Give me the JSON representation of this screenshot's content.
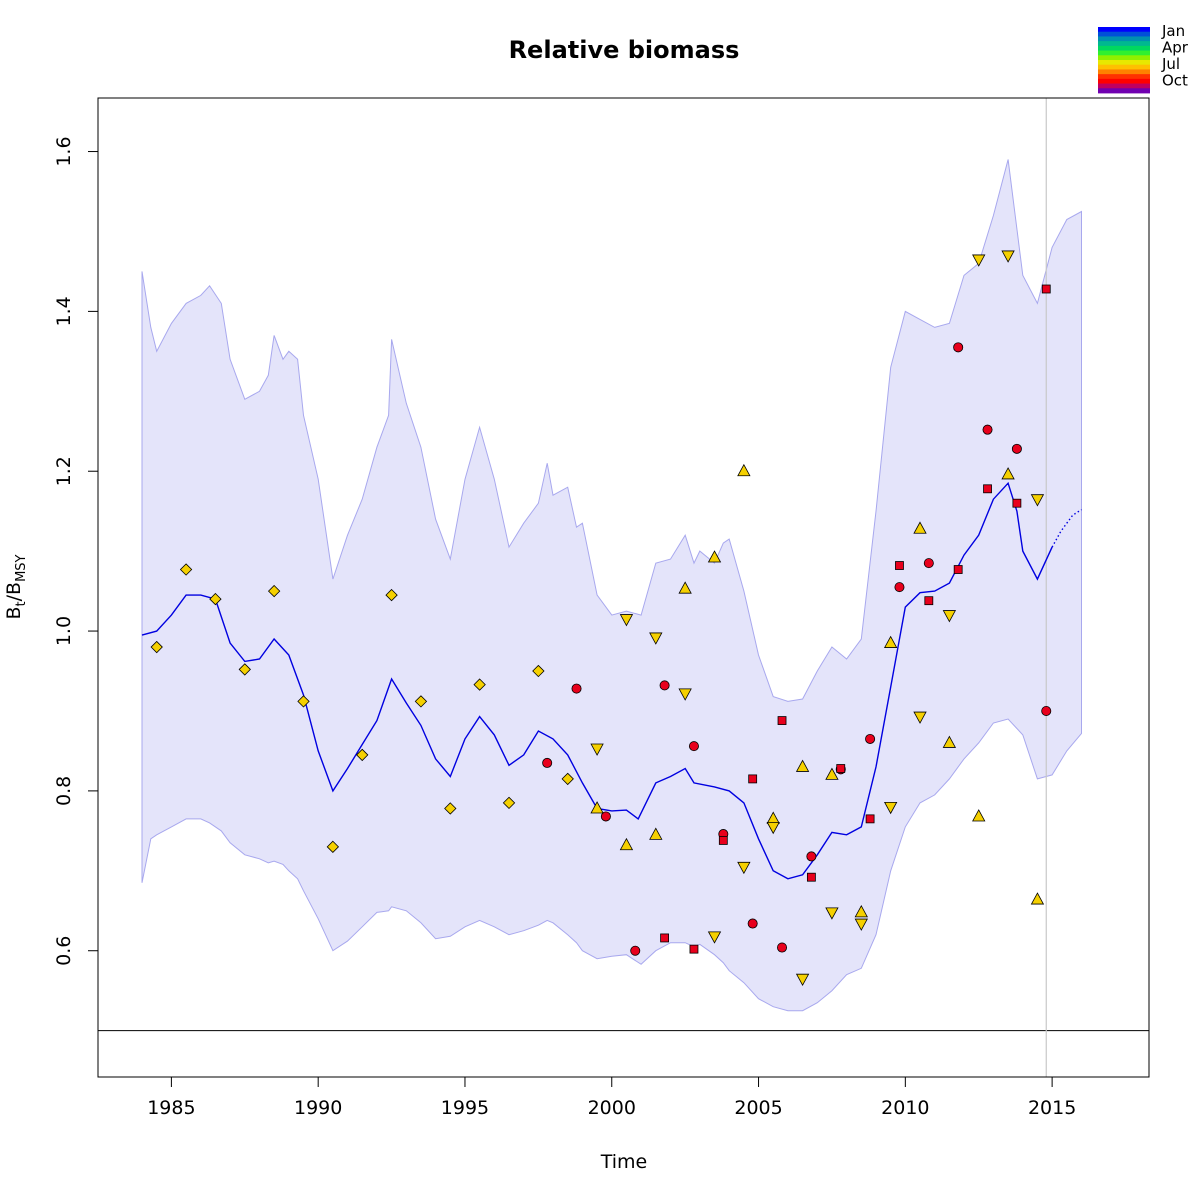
{
  "chart_data": {
    "type": "line",
    "title": "Relative biomass",
    "xlabel": "Time",
    "ylabel": {
      "base": "B",
      "sub1": "t",
      "sep": "/B",
      "sub2": "MSY"
    },
    "xlim": [
      1982.5,
      2018.3
    ],
    "ylim": [
      0.442,
      1.667
    ],
    "x_ticks": [
      1985,
      1990,
      1995,
      2000,
      2005,
      2010,
      2015
    ],
    "y_ticks": [
      0.6,
      0.8,
      1.0,
      1.2,
      1.4,
      1.6
    ],
    "y_tick_labels": [
      "0.6",
      "0.8",
      "1.0",
      "1.2",
      "1.4",
      "1.6"
    ],
    "reference_line_y": 0.5,
    "vertical_line_x": 2014.8,
    "colors": {
      "line": "#0000e0",
      "band_fill": "#e4e4fa",
      "band_stroke": "#a8a8ee",
      "frame": "#000000",
      "vline": "#c8c8c8"
    },
    "legend": {
      "position": "top-right",
      "labels": [
        "Jan",
        "Apr",
        "Jul",
        "Oct"
      ],
      "colors": [
        "#0000ff",
        "#0050d8",
        "#0090b0",
        "#00b890",
        "#00d860",
        "#30f030",
        "#90f000",
        "#e8e800",
        "#ffc000",
        "#ff8000",
        "#ff3000",
        "#ff0000",
        "#c00060",
        "#7000b0"
      ]
    },
    "series": [
      {
        "name": "biomass",
        "style": "solid",
        "points": [
          [
            1984.0,
            0.995
          ],
          [
            1984.5,
            1.0
          ],
          [
            1985.0,
            1.02
          ],
          [
            1985.5,
            1.045
          ],
          [
            1986.0,
            1.045
          ],
          [
            1986.5,
            1.04
          ],
          [
            1987.0,
            0.985
          ],
          [
            1987.5,
            0.962
          ],
          [
            1988.0,
            0.965
          ],
          [
            1988.5,
            0.99
          ],
          [
            1989.0,
            0.97
          ],
          [
            1989.5,
            0.92
          ],
          [
            1990.0,
            0.85
          ],
          [
            1990.5,
            0.8
          ],
          [
            1991.0,
            0.828
          ],
          [
            1991.5,
            0.858
          ],
          [
            1992.0,
            0.888
          ],
          [
            1992.5,
            0.94
          ],
          [
            1993.0,
            0.91
          ],
          [
            1993.5,
            0.882
          ],
          [
            1994.0,
            0.84
          ],
          [
            1994.5,
            0.818
          ],
          [
            1995.0,
            0.865
          ],
          [
            1995.5,
            0.893
          ],
          [
            1996.0,
            0.87
          ],
          [
            1996.5,
            0.832
          ],
          [
            1997.0,
            0.845
          ],
          [
            1997.5,
            0.875
          ],
          [
            1998.0,
            0.865
          ],
          [
            1998.5,
            0.845
          ],
          [
            1999.0,
            0.81
          ],
          [
            1999.5,
            0.778
          ],
          [
            2000.0,
            0.775
          ],
          [
            2000.5,
            0.776
          ],
          [
            2000.9,
            0.765
          ],
          [
            2001.5,
            0.81
          ],
          [
            2002.0,
            0.818
          ],
          [
            2002.5,
            0.828
          ],
          [
            2002.8,
            0.81
          ],
          [
            2003.5,
            0.805
          ],
          [
            2004.0,
            0.8
          ],
          [
            2004.5,
            0.785
          ],
          [
            2005.0,
            0.74
          ],
          [
            2005.5,
            0.7
          ],
          [
            2006.0,
            0.69
          ],
          [
            2006.5,
            0.695
          ],
          [
            2007.0,
            0.72
          ],
          [
            2007.5,
            0.748
          ],
          [
            2008.0,
            0.745
          ],
          [
            2008.5,
            0.755
          ],
          [
            2009.0,
            0.83
          ],
          [
            2009.5,
            0.93
          ],
          [
            2010.0,
            1.03
          ],
          [
            2010.5,
            1.048
          ],
          [
            2011.0,
            1.05
          ],
          [
            2011.5,
            1.06
          ],
          [
            2012.0,
            1.095
          ],
          [
            2012.5,
            1.12
          ],
          [
            2013.0,
            1.165
          ],
          [
            2013.5,
            1.185
          ],
          [
            2013.8,
            1.15
          ],
          [
            2014.0,
            1.1
          ],
          [
            2014.5,
            1.065
          ],
          [
            2015.0,
            1.105
          ]
        ]
      },
      {
        "name": "projection",
        "style": "dotted",
        "points": [
          [
            2015.0,
            1.105
          ],
          [
            2015.3,
            1.125
          ],
          [
            2015.7,
            1.145
          ],
          [
            2016.0,
            1.152
          ]
        ]
      }
    ],
    "band": {
      "x": [
        1984.0,
        1984.3,
        1984.5,
        1985.0,
        1985.5,
        1986.0,
        1986.3,
        1986.7,
        1987.0,
        1987.5,
        1988.0,
        1988.3,
        1988.5,
        1988.8,
        1989.0,
        1989.3,
        1989.5,
        1990.0,
        1990.5,
        1991.0,
        1991.5,
        1992.0,
        1992.4,
        1992.5,
        1993.0,
        1993.5,
        1994.0,
        1994.5,
        1995.0,
        1995.5,
        1996.0,
        1996.5,
        1997.0,
        1997.5,
        1997.8,
        1998.0,
        1998.5,
        1998.8,
        1999.0,
        1999.5,
        2000.0,
        2000.5,
        2001.0,
        2001.5,
        2002.0,
        2002.5,
        2002.8,
        2003.0,
        2003.5,
        2003.8,
        2004.0,
        2004.5,
        2005.0,
        2005.5,
        2006.0,
        2006.5,
        2007.0,
        2007.5,
        2008.0,
        2008.5,
        2009.0,
        2009.5,
        2010.0,
        2010.5,
        2011.0,
        2011.5,
        2012.0,
        2012.5,
        2013.0,
        2013.5,
        2014.0,
        2014.5,
        2015.0,
        2015.5,
        2016.0
      ],
      "lower": [
        0.685,
        0.74,
        0.745,
        0.755,
        0.765,
        0.765,
        0.76,
        0.75,
        0.735,
        0.72,
        0.715,
        0.71,
        0.712,
        0.708,
        0.7,
        0.69,
        0.675,
        0.64,
        0.6,
        0.612,
        0.63,
        0.648,
        0.65,
        0.655,
        0.65,
        0.635,
        0.615,
        0.618,
        0.63,
        0.638,
        0.63,
        0.62,
        0.625,
        0.632,
        0.638,
        0.635,
        0.62,
        0.61,
        0.6,
        0.59,
        0.593,
        0.595,
        0.583,
        0.6,
        0.61,
        0.61,
        0.605,
        0.608,
        0.595,
        0.585,
        0.575,
        0.56,
        0.54,
        0.53,
        0.525,
        0.525,
        0.535,
        0.55,
        0.57,
        0.578,
        0.62,
        0.7,
        0.755,
        0.785,
        0.795,
        0.815,
        0.84,
        0.86,
        0.885,
        0.89,
        0.87,
        0.815,
        0.82,
        0.85,
        0.872
      ],
      "upper": [
        1.45,
        1.38,
        1.35,
        1.385,
        1.41,
        1.42,
        1.432,
        1.41,
        1.34,
        1.29,
        1.3,
        1.32,
        1.37,
        1.34,
        1.35,
        1.34,
        1.27,
        1.19,
        1.065,
        1.12,
        1.165,
        1.23,
        1.27,
        1.365,
        1.285,
        1.23,
        1.14,
        1.09,
        1.19,
        1.255,
        1.19,
        1.105,
        1.135,
        1.16,
        1.21,
        1.17,
        1.18,
        1.13,
        1.135,
        1.045,
        1.02,
        1.025,
        1.02,
        1.085,
        1.09,
        1.12,
        1.085,
        1.1,
        1.085,
        1.11,
        1.115,
        1.05,
        0.97,
        0.918,
        0.912,
        0.915,
        0.95,
        0.98,
        0.965,
        0.99,
        1.15,
        1.33,
        1.4,
        1.39,
        1.38,
        1.385,
        1.445,
        1.46,
        1.52,
        1.59,
        1.445,
        1.41,
        1.48,
        1.515,
        1.525
      ]
    },
    "observations": [
      {
        "group": "diamond",
        "shape": "diamond",
        "color": "#f5d000",
        "points": [
          [
            1984.5,
            0.98
          ],
          [
            1985.5,
            1.077
          ],
          [
            1986.5,
            1.04
          ],
          [
            1987.5,
            0.952
          ],
          [
            1988.5,
            1.05
          ],
          [
            1989.5,
            0.912
          ],
          [
            1990.5,
            0.73
          ],
          [
            1991.5,
            0.845
          ],
          [
            1992.5,
            1.045
          ],
          [
            1993.5,
            0.912
          ],
          [
            1994.5,
            0.778
          ],
          [
            1995.5,
            0.933
          ],
          [
            1996.5,
            0.785
          ],
          [
            1997.5,
            0.95
          ],
          [
            1998.5,
            0.815
          ]
        ]
      },
      {
        "group": "circle",
        "shape": "circle",
        "color": "#e8001c",
        "points": [
          [
            1997.8,
            0.835
          ],
          [
            1998.8,
            0.928
          ],
          [
            1999.8,
            0.768
          ],
          [
            2000.8,
            0.6
          ],
          [
            2001.8,
            0.932
          ],
          [
            2002.8,
            0.856
          ],
          [
            2003.8,
            0.746
          ],
          [
            2004.8,
            0.634
          ],
          [
            2005.8,
            0.604
          ],
          [
            2006.8,
            0.718
          ],
          [
            2007.8,
            0.827
          ],
          [
            2008.8,
            0.865
          ],
          [
            2009.8,
            1.055
          ],
          [
            2010.8,
            1.085
          ],
          [
            2011.8,
            1.355
          ],
          [
            2012.8,
            1.252
          ],
          [
            2013.8,
            1.228
          ],
          [
            2014.8,
            0.9
          ]
        ]
      },
      {
        "group": "square",
        "shape": "square",
        "color": "#e8001c",
        "points": [
          [
            2001.8,
            0.616
          ],
          [
            2002.8,
            0.602
          ],
          [
            2003.8,
            0.738
          ],
          [
            2004.8,
            0.815
          ],
          [
            2005.8,
            0.888
          ],
          [
            2006.8,
            0.692
          ],
          [
            2007.8,
            0.828
          ],
          [
            2008.8,
            0.765
          ],
          [
            2009.8,
            1.082
          ],
          [
            2010.8,
            1.038
          ],
          [
            2011.8,
            1.077
          ],
          [
            2012.8,
            1.178
          ],
          [
            2013.8,
            1.16
          ],
          [
            2014.8,
            1.428
          ]
        ]
      },
      {
        "group": "triangle-up",
        "shape": "triangle-up",
        "color": "#f5d000",
        "points": [
          [
            1999.5,
            0.778
          ],
          [
            2000.5,
            0.732
          ],
          [
            2001.5,
            0.745
          ],
          [
            2002.5,
            1.053
          ],
          [
            2003.5,
            1.092
          ],
          [
            2004.5,
            1.2
          ],
          [
            2005.5,
            0.765
          ],
          [
            2006.5,
            0.83
          ],
          [
            2007.5,
            0.82
          ],
          [
            2008.5,
            0.648
          ],
          [
            2009.5,
            0.985
          ],
          [
            2010.5,
            1.128
          ],
          [
            2011.5,
            0.86
          ],
          [
            2012.5,
            0.768
          ],
          [
            2013.5,
            1.196
          ],
          [
            2014.5,
            0.664
          ]
        ]
      },
      {
        "group": "triangle-down",
        "shape": "triangle-down",
        "color": "#f5d000",
        "points": [
          [
            1999.5,
            0.853
          ],
          [
            2000.5,
            1.015
          ],
          [
            2001.5,
            0.992
          ],
          [
            2002.5,
            0.922
          ],
          [
            2003.5,
            0.618
          ],
          [
            2004.5,
            0.705
          ],
          [
            2005.5,
            0.755
          ],
          [
            2006.5,
            0.565
          ],
          [
            2007.5,
            0.648
          ],
          [
            2008.5,
            0.634
          ],
          [
            2009.5,
            0.78
          ],
          [
            2010.5,
            0.893
          ],
          [
            2011.5,
            1.02
          ],
          [
            2012.5,
            1.465
          ],
          [
            2013.5,
            1.47
          ],
          [
            2014.5,
            1.165
          ]
        ]
      }
    ]
  }
}
